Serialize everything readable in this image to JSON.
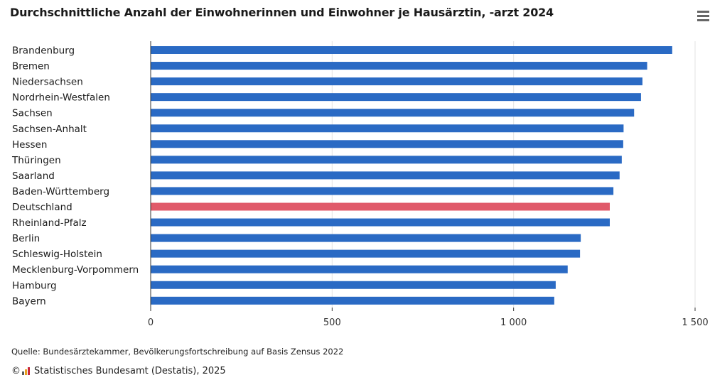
{
  "title": "Durchschnittliche Anzahl der Einwohnerinnen und Einwohner je Hausärztin, -arzt 2024",
  "footer": {
    "source": "Quelle: Bundesärztekammer, Bevölkerungsfortschreibung auf Basis Zensus 2022",
    "copyright_symbol": "©",
    "copyright_text": "Statistisches Bundesamt (Destatis), 2025"
  },
  "icons": {
    "menu": "hamburger-menu-icon",
    "logo": "destatis-logo-icon"
  },
  "colors": {
    "bar": "#2a6ac4",
    "highlight": "#e05a6a",
    "grid": "#e3e3e3",
    "axis": "#333333"
  },
  "chart_data": {
    "type": "bar",
    "orientation": "horizontal",
    "title": "Durchschnittliche Anzahl der Einwohnerinnen und Einwohner je Hausärztin, -arzt 2024",
    "categories": [
      "Brandenburg",
      "Bremen",
      "Niedersachsen",
      "Nordrhein-Westfalen",
      "Sachsen",
      "Sachsen-Anhalt",
      "Hessen",
      "Thüringen",
      "Saarland",
      "Baden-Württemberg",
      "Deutschland",
      "Rheinland-Pfalz",
      "Berlin",
      "Schleswig-Holstein",
      "Mecklenburg-Vorpommern",
      "Hamburg",
      "Bayern"
    ],
    "values": [
      1437,
      1368,
      1355,
      1351,
      1332,
      1303,
      1302,
      1298,
      1292,
      1275,
      1265,
      1265,
      1185,
      1183,
      1149,
      1116,
      1112
    ],
    "highlight_category": "Deutschland",
    "xlim": [
      0,
      1500
    ],
    "xticks": [
      0,
      500,
      1000,
      1500
    ],
    "xtick_labels": [
      "0",
      "500",
      "1 000",
      "1 500"
    ],
    "xlabel": "",
    "ylabel": "",
    "grid": true,
    "legend": "none"
  }
}
